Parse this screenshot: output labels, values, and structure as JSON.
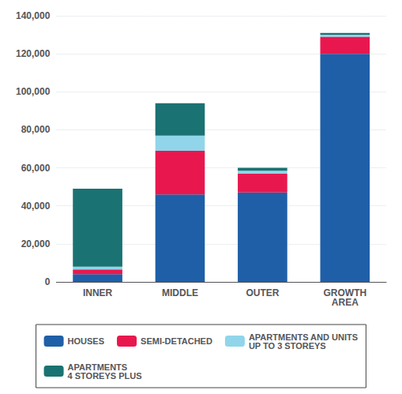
{
  "chart_data": {
    "type": "bar",
    "stacked": true,
    "categories": [
      "INNER",
      "MIDDLE",
      "OUTER",
      "GROWTH\nAREA"
    ],
    "series": [
      {
        "name": "HOUSES",
        "color": "#1e5fa8",
        "values": [
          4000,
          46000,
          47000,
          120000
        ]
      },
      {
        "name": "SEMI-DETACHED",
        "color": "#e8184e",
        "values": [
          2500,
          23000,
          10000,
          9000
        ]
      },
      {
        "name": "APARTMENTS AND UNITS\nUP TO 3 STOREYS",
        "color": "#90d5ea",
        "values": [
          1500,
          8000,
          1500,
          1000
        ]
      },
      {
        "name": "APARTMENTS\n4 STOREYS PLUS",
        "color": "#1a7272",
        "values": [
          41000,
          17000,
          1500,
          1000
        ]
      }
    ],
    "ylim": [
      0,
      140000
    ],
    "yticks": [
      0,
      {
        "value": 20000,
        "label": "20,000"
      },
      {
        "value": 40000,
        "label": "40,000"
      },
      {
        "value": 60000,
        "label": "60,000"
      },
      {
        "value": 80000,
        "label": "80,000"
      },
      {
        "value": 100000,
        "label": "100,000"
      },
      {
        "value": 120000,
        "label": "120,000"
      },
      {
        "value": 140000,
        "label": "140,000"
      }
    ],
    "grid": true,
    "legend": "bottom"
  }
}
